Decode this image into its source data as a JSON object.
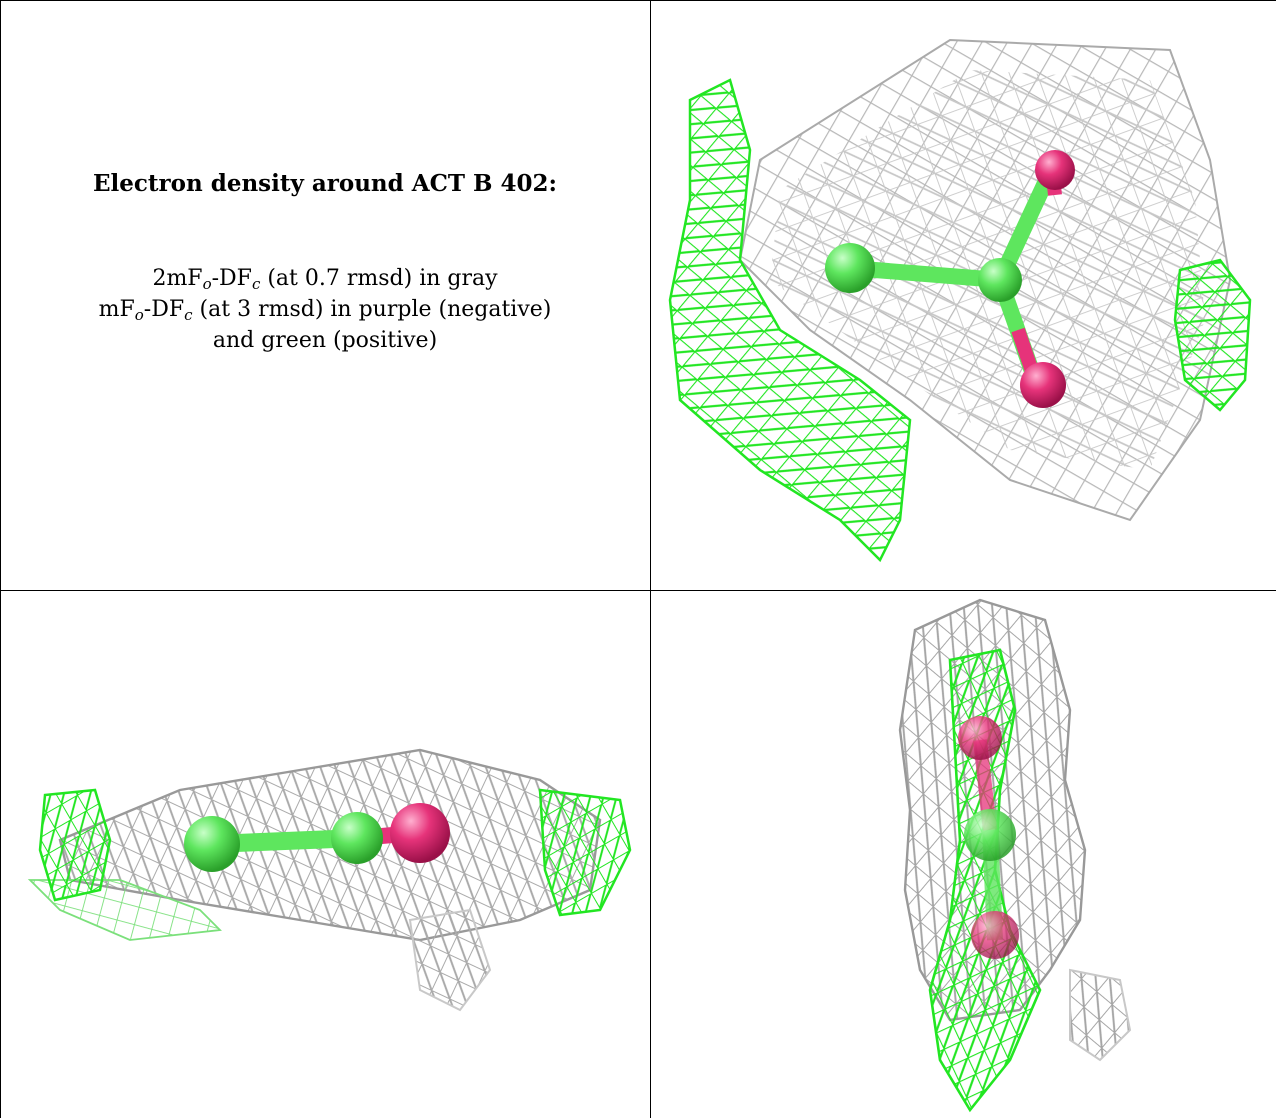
{
  "caption": {
    "title": "Electron density around ACT B 402:",
    "line1": {
      "a": "2mF",
      "o": "o",
      "b": "-DF",
      "c": "c",
      "rest": " (at 0.7 rmsd) in gray"
    },
    "line2": {
      "a": "mF",
      "o": "o",
      "b": "-DF",
      "c": "c",
      "rest": " (at 3 rmsd) in purple (negative)"
    },
    "line3": "and green (positive)"
  },
  "colors": {
    "mesh_gray": "#b4b4b4",
    "mesh_green": "#22e622",
    "atom_carbon": "#5ee65e",
    "atom_oxygen": "#e6337a"
  },
  "panels": [
    {
      "name": "view-top-right",
      "molecule": "acetate",
      "orientation": "face-on"
    },
    {
      "name": "view-bottom-left",
      "molecule": "acetate",
      "orientation": "side-on horizontal"
    },
    {
      "name": "view-bottom-right",
      "molecule": "acetate",
      "orientation": "side-on vertical"
    }
  ]
}
